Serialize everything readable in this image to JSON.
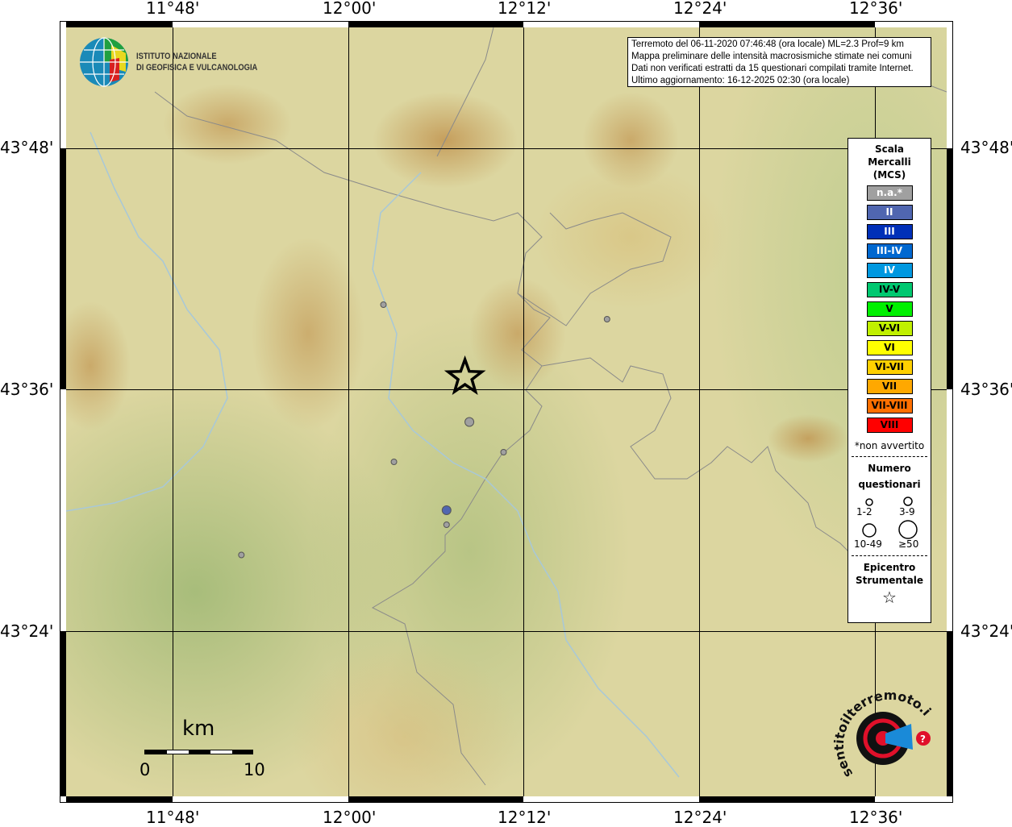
{
  "info": {
    "line1": "Terremoto del 06-11-2020 07:46:48 (ora locale) ML=2.3 Prof=9 km",
    "line2": "Mappa preliminare delle intensità macrosismiche stimate nei comuni",
    "line3": "Dati non verificati estratti da 15 questionari compilati tramite Internet.",
    "line4": "Ultimo aggiornamento: 16-12-2025 02:30 (ora locale)"
  },
  "logo_ingv": {
    "line1": "ISTITUTO NAZIONALE",
    "line2": "DI GEOFISICA E VULCANOLOGIA"
  },
  "logo_hsit": "www.haisentitoilterremoto.it",
  "axes": {
    "lon_ticks": [
      "11°48'",
      "12°00'",
      "12°12'",
      "12°24'",
      "12°36'"
    ],
    "lat_ticks": [
      "43°48'",
      "43°36'",
      "43°24'"
    ]
  },
  "legend": {
    "title1": "Scala",
    "title2": "Mercalli",
    "title3": "(MCS)",
    "scale": [
      {
        "label": "n.a.*",
        "color": "#a0a0a0",
        "text": "#fff"
      },
      {
        "label": "II",
        "color": "#5066b0",
        "text": "#fff"
      },
      {
        "label": "III",
        "color": "#0030b8",
        "text": "#fff"
      },
      {
        "label": "III-IV",
        "color": "#0068d0",
        "text": "#fff"
      },
      {
        "label": "IV",
        "color": "#0098e0",
        "text": "#fff"
      },
      {
        "label": "IV-V",
        "color": "#00c870",
        "text": "#000"
      },
      {
        "label": "V",
        "color": "#00f000",
        "text": "#000"
      },
      {
        "label": "V-VI",
        "color": "#c0f000",
        "text": "#000"
      },
      {
        "label": "VI",
        "color": "#ffff00",
        "text": "#000"
      },
      {
        "label": "VI-VII",
        "color": "#ffd000",
        "text": "#000"
      },
      {
        "label": "VII",
        "color": "#ffa800",
        "text": "#000"
      },
      {
        "label": "VII-VIII",
        "color": "#ff7000",
        "text": "#000"
      },
      {
        "label": "VIII",
        "color": "#ff0000",
        "text": "#000"
      }
    ],
    "note": "*non avvertito",
    "num_title1": "Numero",
    "num_title2": "questionari",
    "sizes": [
      "1-2",
      "3-9",
      "10-49",
      "≥50"
    ],
    "epi1": "Epicentro",
    "epi2": "Strumentale"
  },
  "scalebar": {
    "unit": "km",
    "min": "0",
    "max": "10"
  },
  "epicenter": {
    "lon": 12.133,
    "lat": 43.61
  },
  "observations": [
    {
      "lon": 12.04,
      "lat": 43.67,
      "intensity": "n.a.",
      "count": "1-2"
    },
    {
      "lon": 12.295,
      "lat": 43.658,
      "intensity": "n.a.",
      "count": "1-2"
    },
    {
      "lon": 12.138,
      "lat": 43.573,
      "intensity": "n.a.",
      "count": "3-9"
    },
    {
      "lon": 12.177,
      "lat": 43.548,
      "intensity": "n.a.",
      "count": "1-2"
    },
    {
      "lon": 12.052,
      "lat": 43.54,
      "intensity": "n.a.",
      "count": "1-2"
    },
    {
      "lon": 12.112,
      "lat": 43.5,
      "intensity": "II",
      "count": "3-9"
    },
    {
      "lon": 12.112,
      "lat": 43.488,
      "intensity": "n.a.",
      "count": "1-2"
    },
    {
      "lon": 11.878,
      "lat": 43.463,
      "intensity": "n.a.",
      "count": "1-2"
    }
  ]
}
